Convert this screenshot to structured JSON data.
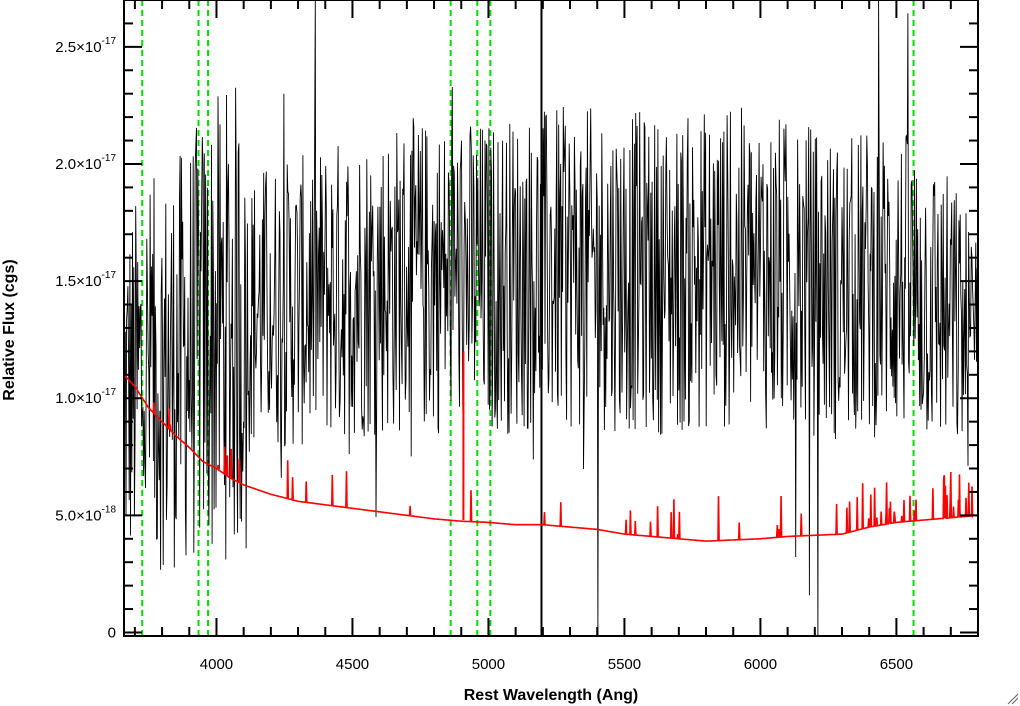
{
  "chart_data": {
    "type": "line",
    "xlabel": "Rest Wavelength (Ang)",
    "ylabel": "Relative Flux (cgs)",
    "xlim": [
      3660,
      6800
    ],
    "ylim": [
      -1.5e-19,
      2.7e-17
    ],
    "grid": false,
    "x_ticks": [
      {
        "value": 4000,
        "label": "4000"
      },
      {
        "value": 4500,
        "label": "4500"
      },
      {
        "value": 5000,
        "label": "5000"
      },
      {
        "value": 5500,
        "label": "5500"
      },
      {
        "value": 6000,
        "label": "6000"
      },
      {
        "value": 6500,
        "label": "6500"
      }
    ],
    "y_ticks": [
      {
        "value": 0,
        "mantissa": "0",
        "exponent": ""
      },
      {
        "value": 5e-18,
        "mantissa": "5.0×10",
        "exponent": "-18"
      },
      {
        "value": 1e-17,
        "mantissa": "1.0×10",
        "exponent": "-17"
      },
      {
        "value": 1.5e-17,
        "mantissa": "1.5×10",
        "exponent": "-17"
      },
      {
        "value": 2e-17,
        "mantissa": "2.0×10",
        "exponent": "-17"
      },
      {
        "value": 2.5e-17,
        "mantissa": "2.5×10",
        "exponent": "-17"
      }
    ],
    "vertical_lines": [
      3727,
      3934,
      3969,
      4861,
      4959,
      5007,
      6563
    ],
    "series": [
      {
        "color": "#000000",
        "style": "noisy-spectrum",
        "x": [
          3660,
          3700,
          3750,
          3800,
          3850,
          3900,
          3950,
          4000,
          4100,
          4200,
          4300,
          4400,
          4500,
          4600,
          4700,
          4800,
          4900,
          5000,
          5100,
          5200,
          5300,
          5400,
          5500,
          5600,
          5700,
          5800,
          5900,
          6000,
          6100,
          6200,
          6300,
          6400,
          6500,
          6600,
          6700,
          6800
        ],
        "y": [
          1e-17,
          1.05e-17,
          1.1e-17,
          1.1e-17,
          1.15e-17,
          1.2e-17,
          1.25e-17,
          1.3e-17,
          1.35e-17,
          1.4e-17,
          1.4e-17,
          1.45e-17,
          1.48e-17,
          1.5e-17,
          1.52e-17,
          1.52e-17,
          1.52e-17,
          1.52e-17,
          1.53e-17,
          1.55e-17,
          1.55e-17,
          1.55e-17,
          1.55e-17,
          1.53e-17,
          1.52e-17,
          1.55e-17,
          1.55e-17,
          1.55e-17,
          1.52e-17,
          1.5e-17,
          1.45e-17,
          1.5e-17,
          1.5e-17,
          1.45e-17,
          1.35e-17,
          1.2e-17
        ]
      },
      {
        "color": "#ff0000",
        "style": "error-spectrum",
        "x": [
          3660,
          3700,
          3750,
          3800,
          3850,
          3900,
          3950,
          4000,
          4050,
          4100,
          4200,
          4300,
          4400,
          4500,
          4600,
          4700,
          4800,
          4900,
          5000,
          5100,
          5200,
          5300,
          5400,
          5500,
          5600,
          5700,
          5800,
          5900,
          6000,
          6100,
          6200,
          6300,
          6400,
          6500,
          6600,
          6700,
          6800
        ],
        "y": [
          1.1e-17,
          1.05e-17,
          9.6e-18,
          9e-18,
          8.4e-18,
          7.9e-18,
          7.3e-18,
          7e-18,
          6.6e-18,
          6.3e-18,
          5.9e-18,
          5.6e-18,
          5.45e-18,
          5.3e-18,
          5.15e-18,
          5e-18,
          4.85e-18,
          4.75e-18,
          4.7e-18,
          4.6e-18,
          4.6e-18,
          4.5e-18,
          4.4e-18,
          4.2e-18,
          4.1e-18,
          4e-18,
          3.9e-18,
          3.95e-18,
          4e-18,
          4.1e-18,
          4.15e-18,
          4.2e-18,
          4.5e-18,
          4.7e-18,
          4.8e-18,
          4.9e-18,
          5e-18
        ]
      }
    ],
    "colors": {
      "vertical_lines": "#00dd00",
      "axes": "#000000"
    }
  }
}
